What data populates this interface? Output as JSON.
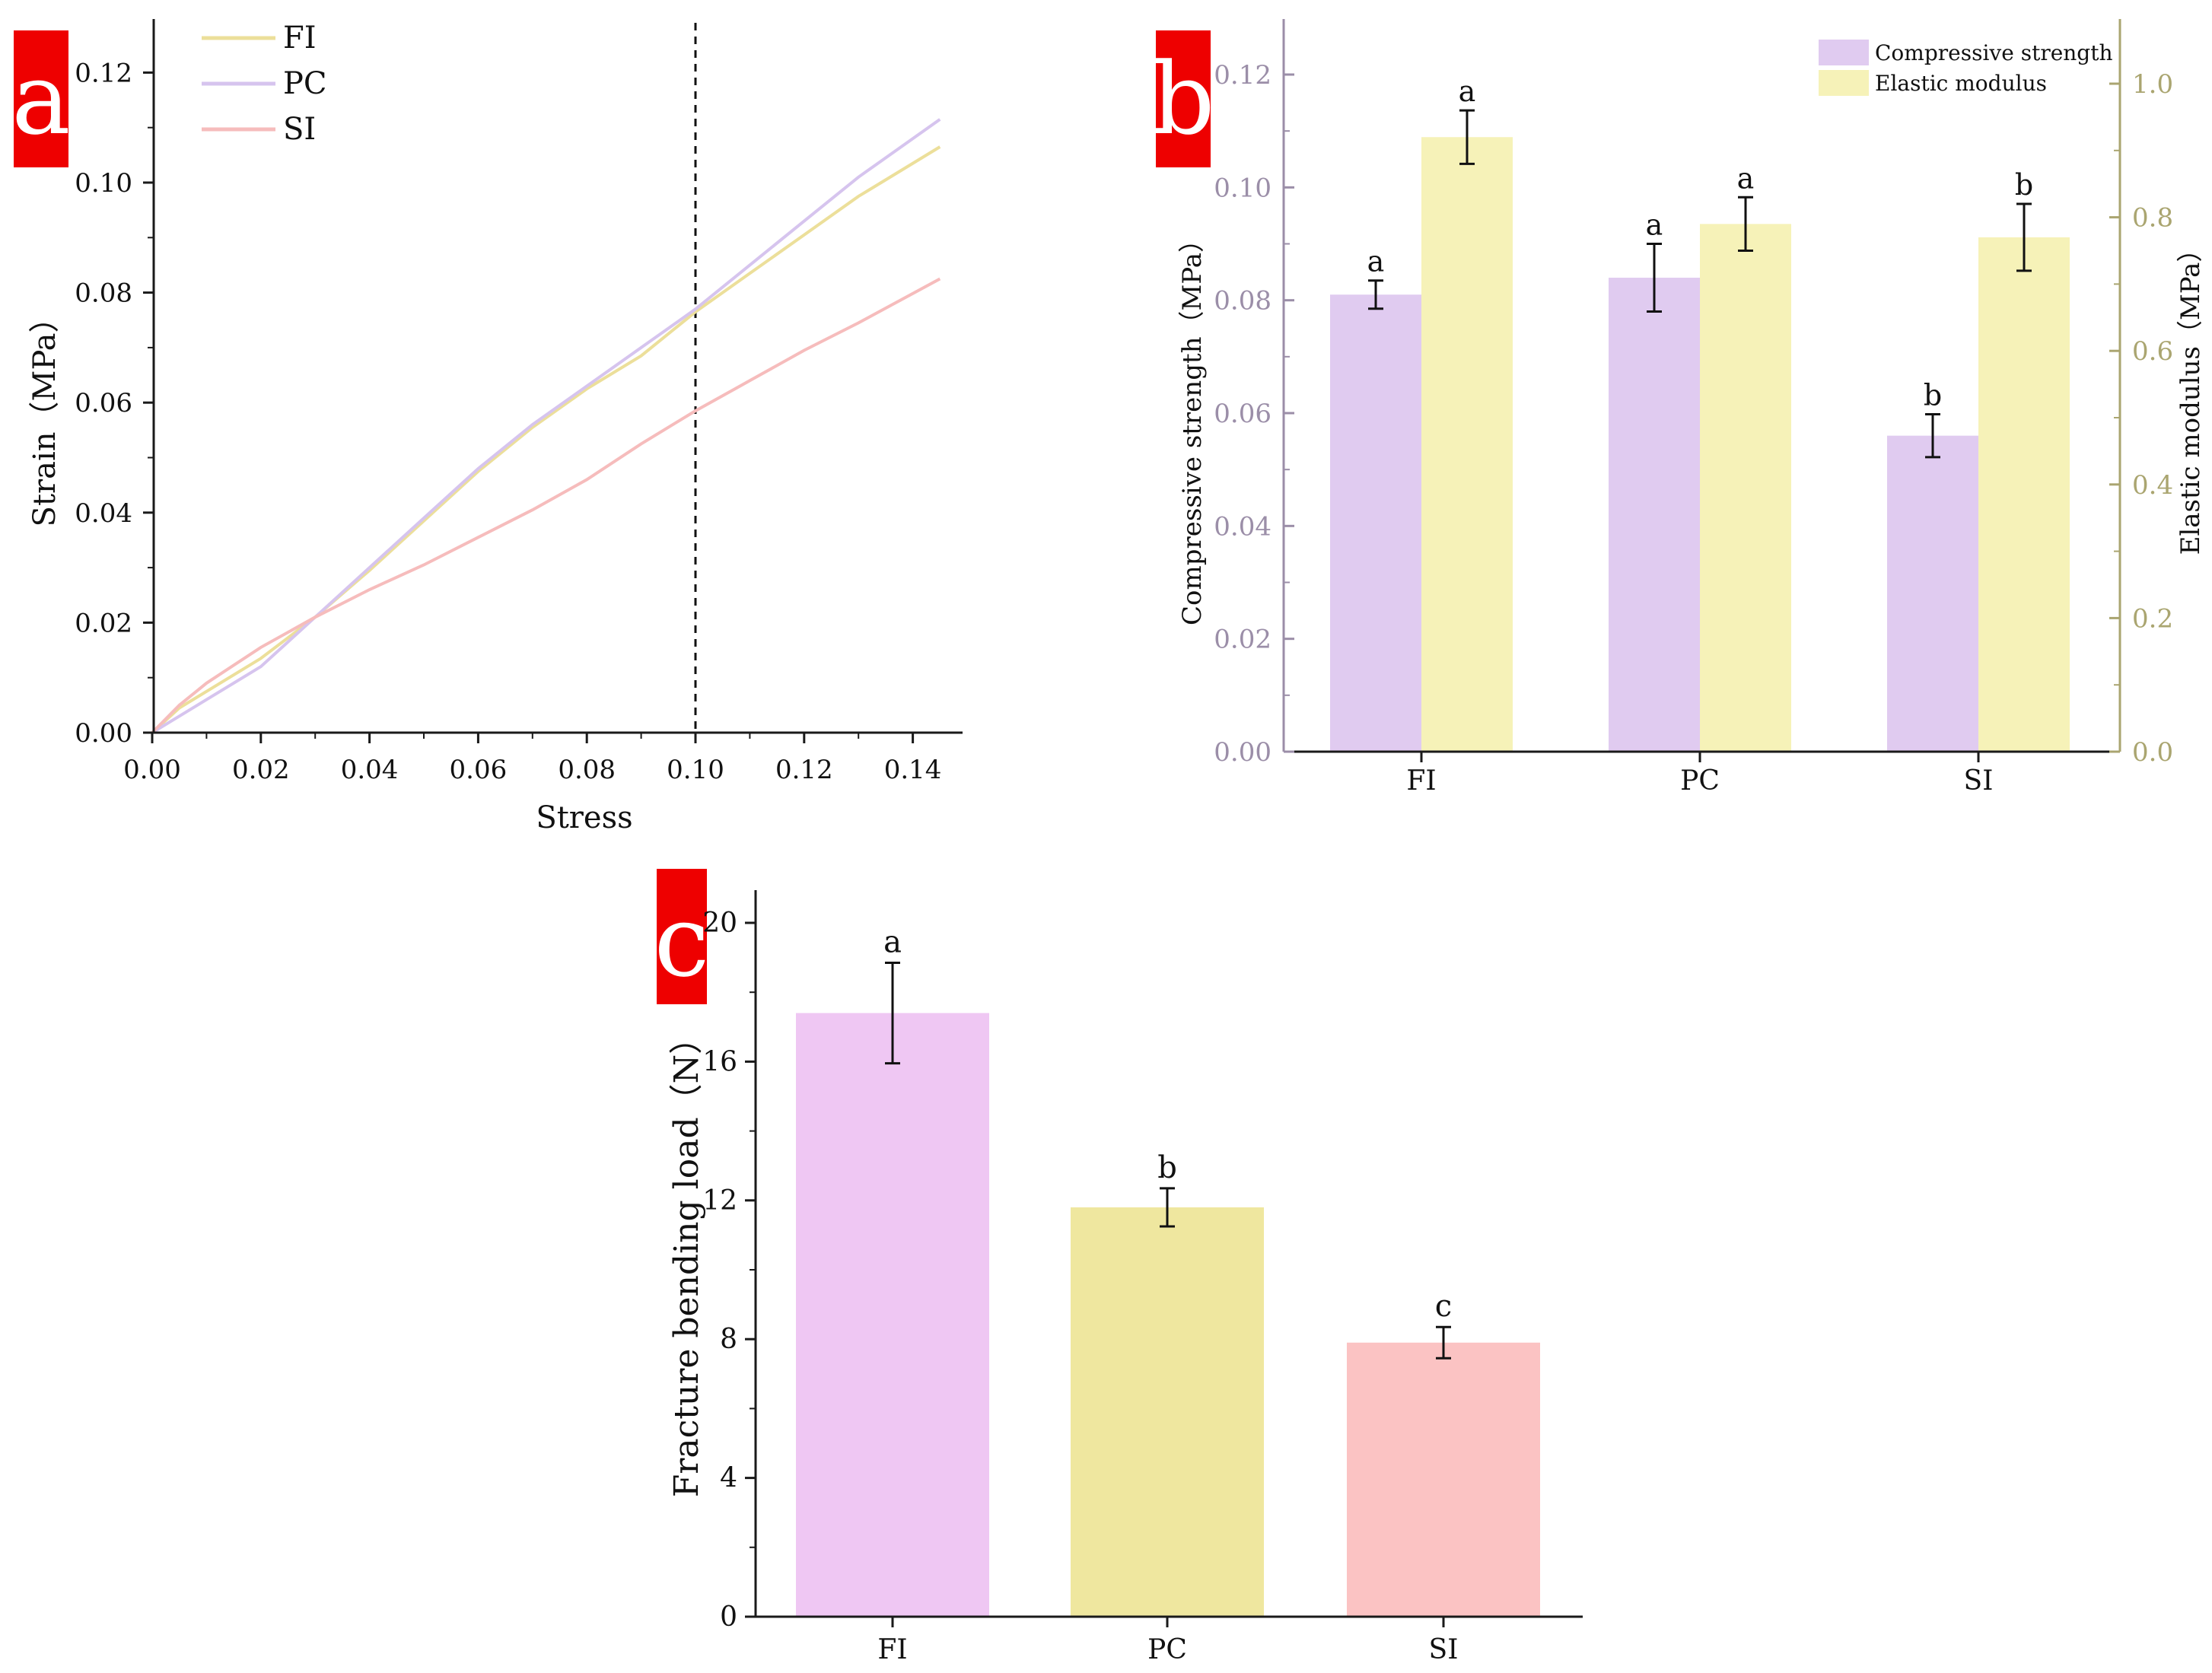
{
  "chart_data": [
    {
      "panel": "a",
      "type": "line",
      "xlabel": "Stress",
      "ylabel": "Strain（MPa）",
      "xlim": [
        0,
        0.15
      ],
      "ylim": [
        0,
        0.13
      ],
      "xticks": [
        "0.00",
        "0.02",
        "0.04",
        "0.06",
        "0.08",
        "0.10",
        "0.12",
        "0.14"
      ],
      "yticks": [
        "0.00",
        "0.02",
        "0.04",
        "0.06",
        "0.08",
        "0.10",
        "0.12"
      ],
      "reference_line": {
        "x": 0.1,
        "style": "dashed"
      },
      "legend": "top-left",
      "series": [
        {
          "name": "FI",
          "color": "#ecdf9a",
          "x": [
            0,
            0.005,
            0.01,
            0.02,
            0.03,
            0.04,
            0.05,
            0.06,
            0.07,
            0.08,
            0.09,
            0.1,
            0.11,
            0.12,
            0.13,
            0.145
          ],
          "y": [
            0,
            0.0045,
            0.0075,
            0.0135,
            0.021,
            0.0295,
            0.0385,
            0.0475,
            0.0555,
            0.0625,
            0.0685,
            0.0765,
            0.0835,
            0.0905,
            0.0975,
            0.1065
          ]
        },
        {
          "name": "PC",
          "color": "#d6c4ee",
          "x": [
            0,
            0.005,
            0.01,
            0.02,
            0.03,
            0.04,
            0.05,
            0.06,
            0.07,
            0.08,
            0.09,
            0.1,
            0.11,
            0.12,
            0.13,
            0.145
          ],
          "y": [
            0,
            0.003,
            0.006,
            0.012,
            0.021,
            0.03,
            0.039,
            0.048,
            0.056,
            0.063,
            0.07,
            0.077,
            0.085,
            0.093,
            0.101,
            0.1115
          ]
        },
        {
          "name": "SI",
          "color": "#f6bcbc",
          "x": [
            0,
            0.005,
            0.01,
            0.02,
            0.03,
            0.04,
            0.05,
            0.06,
            0.07,
            0.08,
            0.09,
            0.1,
            0.11,
            0.12,
            0.13,
            0.145
          ],
          "y": [
            0,
            0.005,
            0.009,
            0.0155,
            0.021,
            0.026,
            0.0305,
            0.0355,
            0.0405,
            0.046,
            0.0525,
            0.0585,
            0.064,
            0.0695,
            0.0745,
            0.0825
          ]
        }
      ]
    },
    {
      "panel": "b",
      "type": "bar",
      "categories": [
        "FI",
        "PC",
        "SI"
      ],
      "ylabel": "Compressive strength（MPa）",
      "ylabel_right": "Elastic modulus（MPa）",
      "ylim": [
        0,
        0.13
      ],
      "ylim_right": [
        0,
        1.1
      ],
      "yticks": [
        "0.00",
        "0.02",
        "0.04",
        "0.06",
        "0.08",
        "0.10",
        "0.12"
      ],
      "yticks_right": [
        "0.0",
        "0.2",
        "0.4",
        "0.6",
        "0.8",
        "1.0"
      ],
      "legend": "top-right",
      "series": [
        {
          "name": "Compressive strength",
          "axis": "left",
          "color": "#e0cbf0",
          "values": [
            0.081,
            0.084,
            0.056
          ],
          "errors": [
            0.0025,
            0.006,
            0.0038
          ],
          "letters": [
            "a",
            "a",
            "b"
          ]
        },
        {
          "name": "Elastic modulus",
          "axis": "right",
          "color": "#f6f2b8",
          "values": [
            0.92,
            0.79,
            0.77
          ],
          "errors": [
            0.04,
            0.04,
            0.05
          ],
          "letters": [
            "a",
            "a",
            "b"
          ]
        }
      ]
    },
    {
      "panel": "c",
      "type": "bar",
      "categories": [
        "FI",
        "PC",
        "SI"
      ],
      "ylabel": "Fracture bending load（N）",
      "ylim": [
        0,
        21
      ],
      "yticks": [
        "0",
        "4",
        "8",
        "12",
        "16",
        "20"
      ],
      "values": [
        17.4,
        11.8,
        7.9
      ],
      "errors": [
        1.45,
        0.55,
        0.45
      ],
      "letters": [
        "a",
        "b",
        "c"
      ],
      "colors": [
        "#efc7f3",
        "#efe79f",
        "#fbc3c3"
      ]
    }
  ],
  "panel_labels": [
    "a",
    "b",
    "c"
  ],
  "colors": {
    "label_bg": "#ee0000",
    "label_fg": "#ffffff",
    "axis": "#1a1a1a",
    "b_left_axis": "#9b8ea8",
    "b_right_axis": "#aaa570"
  }
}
